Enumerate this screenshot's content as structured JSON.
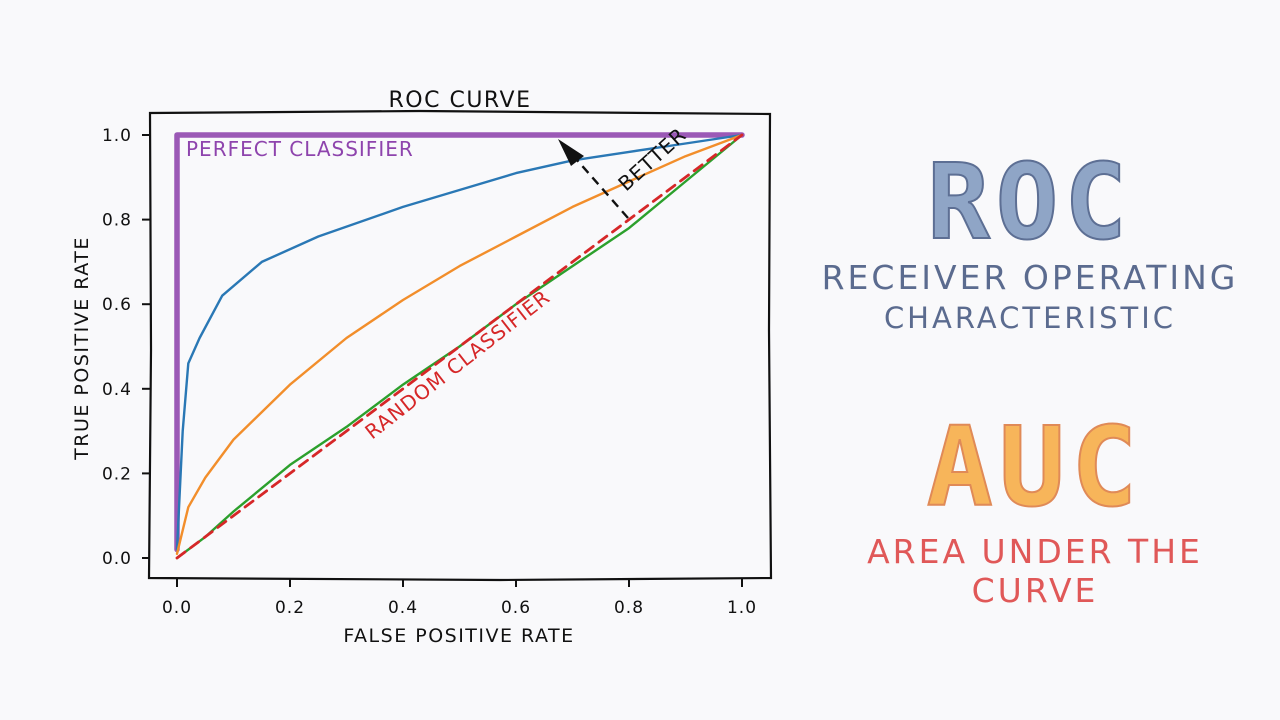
{
  "chart_data": {
    "type": "line",
    "title": "ROC CURVE",
    "xlabel": "FALSE POSITIVE RATE",
    "ylabel": "TRUE POSITIVE RATE",
    "xlim": [
      0,
      1
    ],
    "ylim": [
      0,
      1
    ],
    "xticks": [
      "0.0",
      "0.2",
      "0.4",
      "0.6",
      "0.8",
      "1.0"
    ],
    "yticks": [
      "0.0",
      "0.2",
      "0.4",
      "0.6",
      "0.8",
      "1.0"
    ],
    "grid": false,
    "series": [
      {
        "name": "PERFECT CLASSIFIER",
        "color": "#9b59b6",
        "style": "solid-thick",
        "x": [
          0,
          0,
          1
        ],
        "y": [
          0.02,
          1.0,
          1.0
        ]
      },
      {
        "color": "#2a78b5",
        "style": "solid",
        "x": [
          0,
          0.01,
          0.02,
          0.04,
          0.08,
          0.15,
          0.25,
          0.4,
          0.5,
          0.6,
          0.7,
          0.8,
          0.9,
          1.0
        ],
        "y": [
          0.02,
          0.3,
          0.46,
          0.52,
          0.62,
          0.7,
          0.76,
          0.83,
          0.87,
          0.91,
          0.94,
          0.96,
          0.98,
          1.0
        ]
      },
      {
        "color": "#f28e2b",
        "style": "solid",
        "x": [
          0,
          0.02,
          0.05,
          0.1,
          0.2,
          0.3,
          0.4,
          0.5,
          0.6,
          0.7,
          0.8,
          0.9,
          1.0
        ],
        "y": [
          0.01,
          0.12,
          0.19,
          0.28,
          0.41,
          0.52,
          0.61,
          0.69,
          0.76,
          0.83,
          0.89,
          0.95,
          1.0
        ]
      },
      {
        "color": "#2ca02c",
        "style": "solid",
        "x": [
          0,
          0.05,
          0.1,
          0.2,
          0.3,
          0.4,
          0.5,
          0.6,
          0.7,
          0.8,
          0.9,
          1.0
        ],
        "y": [
          0.0,
          0.05,
          0.11,
          0.22,
          0.31,
          0.41,
          0.5,
          0.6,
          0.69,
          0.78,
          0.89,
          1.0
        ]
      },
      {
        "name": "RANDOM CLASSIFIER",
        "color": "#d62728",
        "style": "dashed",
        "x": [
          0,
          1
        ],
        "y": [
          0,
          1
        ]
      }
    ],
    "annotations": [
      {
        "text": "PERFECT CLASSIFIER",
        "color": "#8e44ad"
      },
      {
        "text": "RANDOM CLASSIFIER",
        "color": "#d62728"
      },
      {
        "text": "BETTER",
        "color": "#111111"
      }
    ]
  },
  "side_panel": {
    "roc_acronym": "ROC",
    "roc_line1": "RECEIVER OPERATING",
    "roc_line2": "CHARACTERISTIC",
    "auc_acronym": "AUC",
    "auc_line1": "AREA UNDER THE  CURVE"
  }
}
